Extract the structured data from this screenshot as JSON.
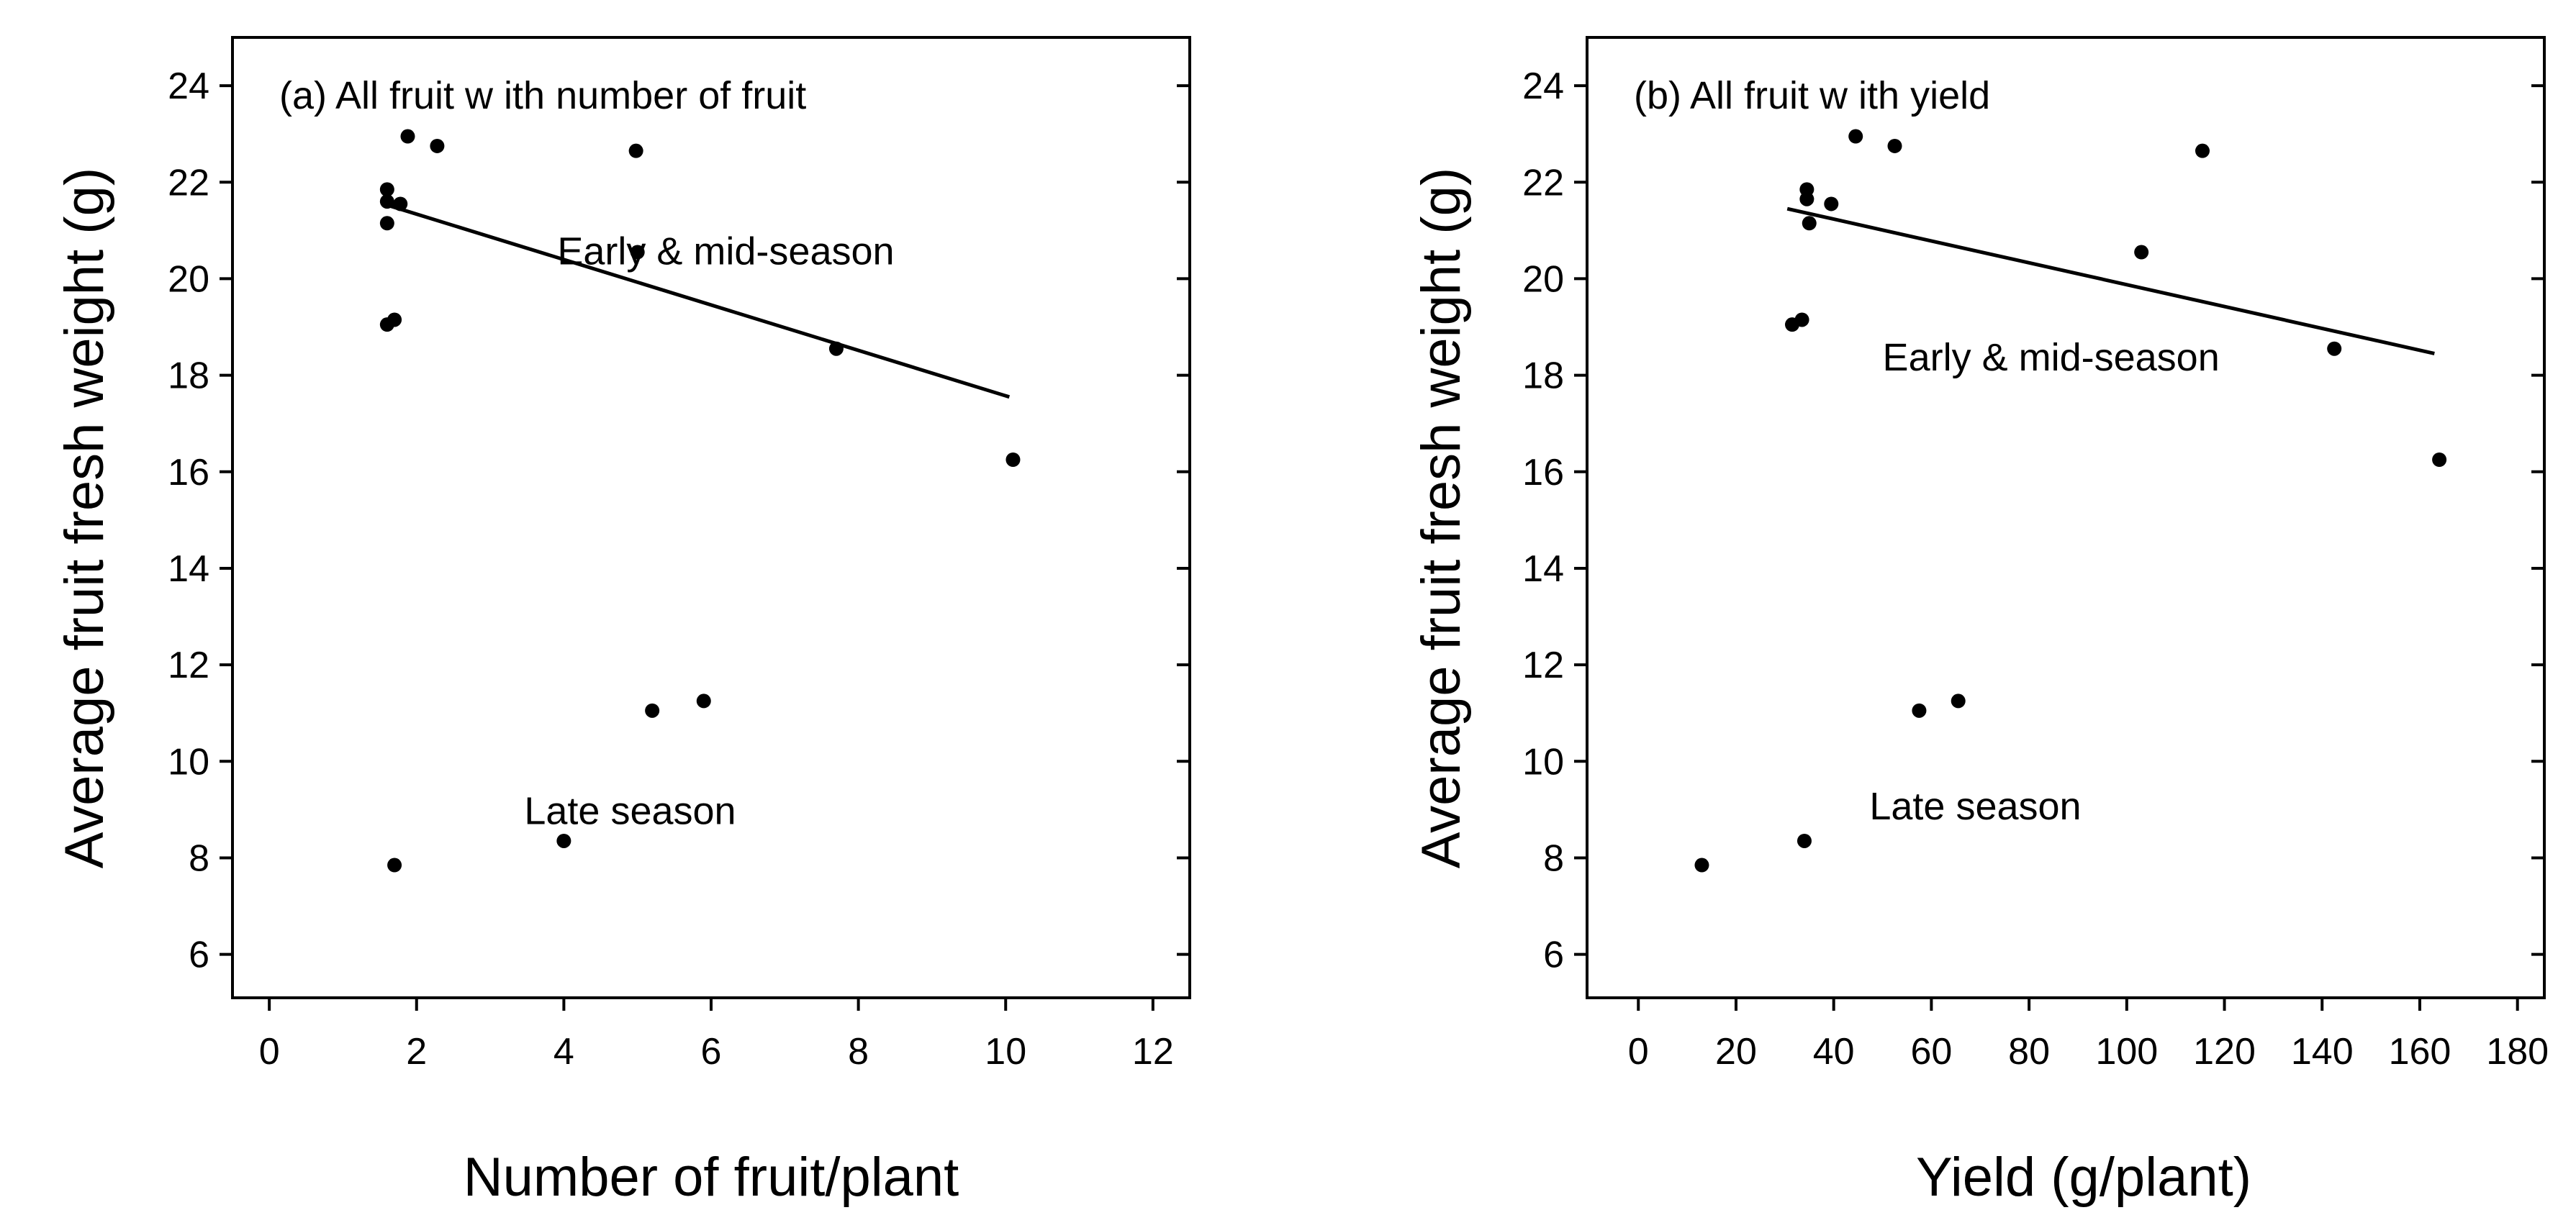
{
  "chart_data": [
    {
      "type": "scatter",
      "panel_title": "(a) All fruit w ith number of fruit",
      "xlabel": "Number of fruit/plant",
      "ylabel": "Average fruit fresh weight (g)",
      "xlim": [
        -0.5,
        12.5
      ],
      "ylim": [
        5.1,
        25.0
      ],
      "xticks": [
        0,
        2,
        4,
        6,
        8,
        10,
        12
      ],
      "yticks": [
        6,
        8,
        10,
        12,
        14,
        16,
        18,
        20,
        22,
        24
      ],
      "annotations": [
        {
          "text": "Early & mid-season",
          "x": 6.2,
          "y": 20.3
        },
        {
          "text": "Late season",
          "x": 4.9,
          "y": 8.7
        }
      ],
      "points": [
        {
          "x": 1.6,
          "y": 21.85
        },
        {
          "x": 1.6,
          "y": 21.6
        },
        {
          "x": 1.78,
          "y": 21.55
        },
        {
          "x": 1.6,
          "y": 21.15
        },
        {
          "x": 1.88,
          "y": 22.95
        },
        {
          "x": 2.28,
          "y": 22.75
        },
        {
          "x": 4.98,
          "y": 22.65
        },
        {
          "x": 5.0,
          "y": 20.55
        },
        {
          "x": 1.6,
          "y": 19.05
        },
        {
          "x": 1.7,
          "y": 19.15
        },
        {
          "x": 7.7,
          "y": 18.55
        },
        {
          "x": 10.1,
          "y": 16.25
        },
        {
          "x": 5.2,
          "y": 11.05
        },
        {
          "x": 5.9,
          "y": 11.25
        },
        {
          "x": 4.0,
          "y": 8.35
        },
        {
          "x": 1.7,
          "y": 7.85
        }
      ],
      "fit_line": {
        "x": [
          1.55,
          10.05
        ],
        "y": [
          21.55,
          17.55
        ]
      }
    },
    {
      "type": "scatter",
      "panel_title": "(b) All fruit w ith yield",
      "xlabel": "Yield (g/plant)",
      "ylabel": "Average fruit fresh weight (g)",
      "xlim": [
        -10.5,
        185.5
      ],
      "ylim": [
        5.1,
        25.0
      ],
      "xticks": [
        0,
        20,
        40,
        60,
        80,
        100,
        120,
        140,
        160,
        180
      ],
      "yticks": [
        6,
        8,
        10,
        12,
        14,
        16,
        18,
        20,
        22,
        24
      ],
      "annotations": [
        {
          "text": "Early & mid-season",
          "x": 84.5,
          "y": 18.1
        },
        {
          "text": "Late season",
          "x": 69,
          "y": 8.8
        }
      ],
      "points": [
        {
          "x": 34.5,
          "y": 21.85
        },
        {
          "x": 34.5,
          "y": 21.65
        },
        {
          "x": 39.5,
          "y": 21.55
        },
        {
          "x": 35.0,
          "y": 21.15
        },
        {
          "x": 44.5,
          "y": 22.95
        },
        {
          "x": 52.5,
          "y": 22.75
        },
        {
          "x": 115.5,
          "y": 22.65
        },
        {
          "x": 103.0,
          "y": 20.55
        },
        {
          "x": 31.5,
          "y": 19.05
        },
        {
          "x": 33.5,
          "y": 19.15
        },
        {
          "x": 142.5,
          "y": 18.55
        },
        {
          "x": 164.0,
          "y": 16.25
        },
        {
          "x": 57.5,
          "y": 11.05
        },
        {
          "x": 65.5,
          "y": 11.25
        },
        {
          "x": 34.0,
          "y": 8.35
        },
        {
          "x": 13.0,
          "y": 7.85
        }
      ],
      "fit_line": {
        "x": [
          30.5,
          163.0
        ],
        "y": [
          21.45,
          18.45
        ]
      }
    }
  ]
}
